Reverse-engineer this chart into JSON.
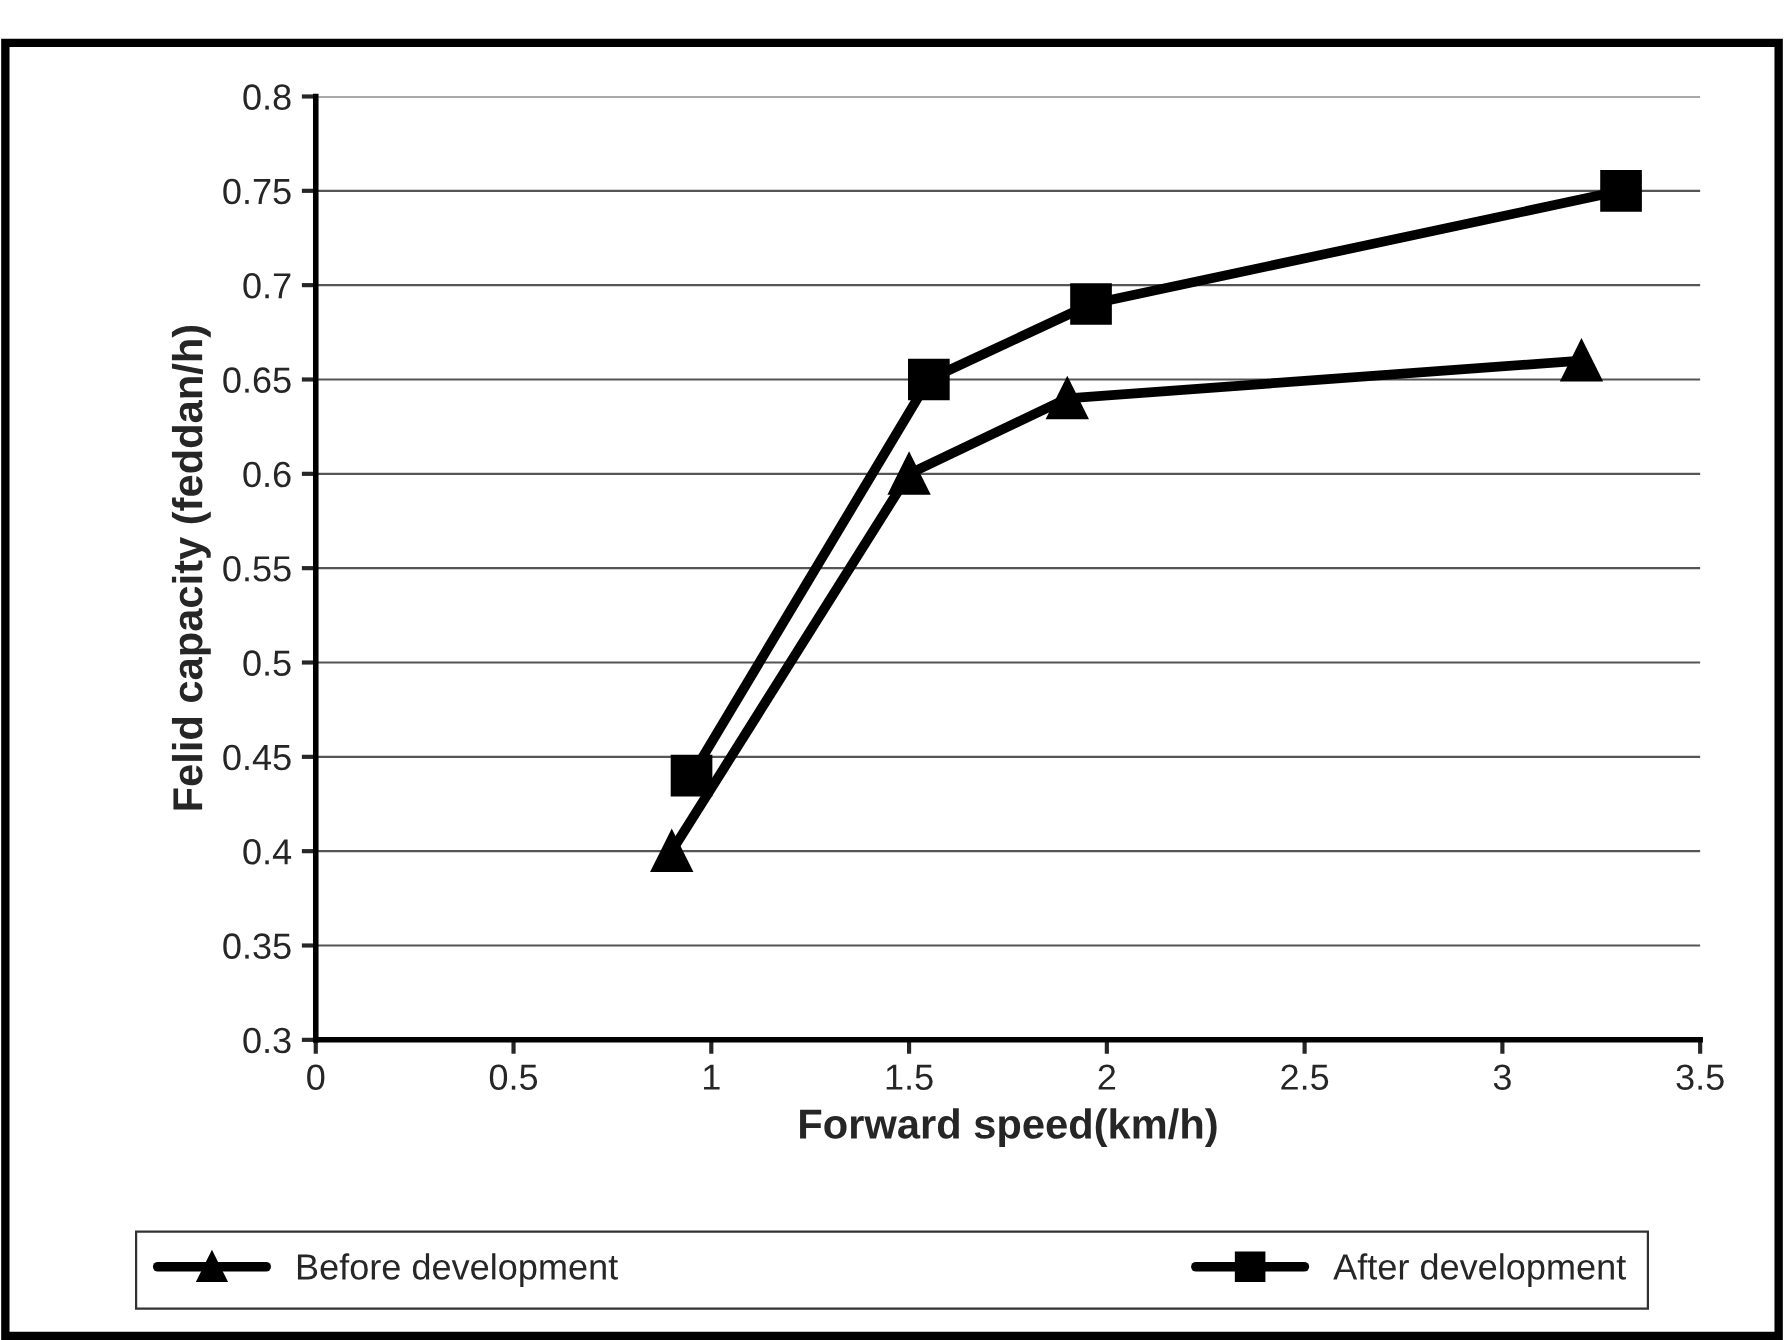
{
  "chart_data": {
    "type": "line",
    "xlabel": "Forward speed(km/h)",
    "ylabel": "Felid capacity (feddan/h)",
    "series": [
      {
        "name": "Before development",
        "color": "#000000",
        "marker": "triangle",
        "x": [
          0.9,
          1.5,
          1.9,
          3.2
        ],
        "values": [
          0.4,
          0.6,
          0.64,
          0.66
        ]
      },
      {
        "name": "After development",
        "color": "#000000",
        "marker": "square",
        "x": [
          0.95,
          1.55,
          1.96,
          3.3
        ],
        "values": [
          0.44,
          0.65,
          0.69,
          0.75
        ]
      }
    ],
    "xlim": [
      0,
      3.5
    ],
    "xticks": [
      0,
      0.5,
      1,
      1.5,
      2,
      2.5,
      3,
      3.5
    ],
    "ylim": [
      0.3,
      0.8
    ],
    "yticks": [
      0.3,
      0.35,
      0.4,
      0.45,
      0.5,
      0.55,
      0.6,
      0.65,
      0.7,
      0.75,
      0.8
    ],
    "grid": "y",
    "legend": "bottom",
    "line_style": "solid"
  }
}
